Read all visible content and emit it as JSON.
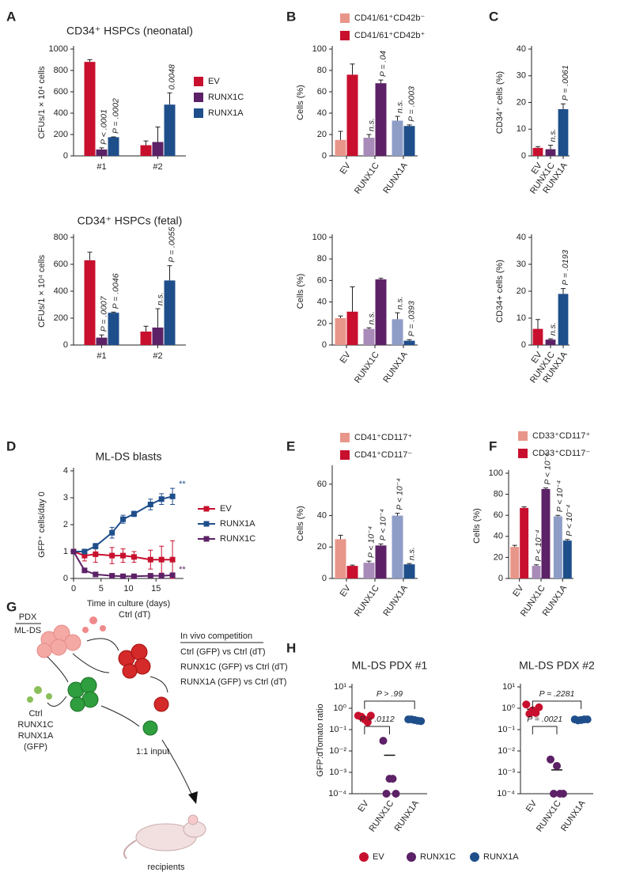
{
  "panel_labels": [
    "A",
    "B",
    "C",
    "D",
    "E",
    "F",
    "G",
    "H"
  ],
  "chart_data": [
    {
      "type": "bar",
      "title": "CD34⁺ HSPCs (neonatal)",
      "ylabel": "CFUs/1 × 10⁴ cells",
      "categories": [
        "#1",
        "#2"
      ],
      "series": [
        {
          "name": "EV",
          "color": "#c8102e",
          "values": [
            880,
            100
          ],
          "errors": [
            20,
            40
          ],
          "annotations": [
            null,
            null
          ]
        },
        {
          "name": "RUNX1C",
          "color": "#5c2166",
          "values": [
            60,
            130
          ],
          "errors": [
            15,
            140
          ],
          "annotations": [
            "P < .0001",
            null
          ]
        },
        {
          "name": "RUNX1A",
          "color": "#1f4f8b",
          "values": [
            175,
            480
          ],
          "errors": [
            3,
            110
          ],
          "annotations": [
            "P = .0002",
            "0.0048"
          ]
        }
      ],
      "ylim": [
        0,
        1000
      ],
      "yticks": [
        0,
        200,
        400,
        600,
        800,
        1000
      ],
      "legend": "right"
    },
    {
      "type": "bar",
      "title": "CD34⁺ HSPCs (fetal)",
      "ylabel": "CFUs/1 × 10⁴ cells",
      "categories": [
        "#1",
        "#2"
      ],
      "series": [
        {
          "color": "#c8102e",
          "values": [
            630,
            100
          ],
          "errors": [
            60,
            40
          ],
          "annotations": [
            null,
            null
          ]
        },
        {
          "color": "#5c2166",
          "values": [
            55,
            130
          ],
          "errors": [
            20,
            140
          ],
          "annotations": [
            "P = .0007",
            "n.s."
          ]
        },
        {
          "color": "#1f4f8b",
          "values": [
            240,
            480
          ],
          "errors": [
            5,
            110
          ],
          "annotations": [
            "P = .0046",
            "P = .0055"
          ]
        }
      ],
      "ylim": [
        0,
        800
      ],
      "yticks": [
        0,
        200,
        400,
        600,
        800
      ]
    },
    {
      "type": "bar",
      "ylabel": "Cells (%)",
      "categories": [
        "EV",
        "RUNX1C",
        "RUNX1A"
      ],
      "series": [
        {
          "name": "CD41/61⁺CD42b⁻",
          "colors": [
            "#e8968a",
            "#a88bb8",
            "#8e9dc6"
          ],
          "values": [
            15,
            17,
            33
          ],
          "errors": [
            8,
            3,
            4
          ],
          "annotations": [
            null,
            "n.s.",
            "n.s."
          ]
        },
        {
          "name": "CD41/61⁺CD42b⁺",
          "colors": [
            "#c8102e",
            "#5c2166",
            "#1f4f8b"
          ],
          "values": [
            76,
            68,
            28
          ],
          "errors": [
            10,
            3,
            1
          ],
          "annotations": [
            null,
            "P = .04",
            "P = .0003"
          ]
        }
      ],
      "ylim": [
        0,
        100
      ],
      "yticks": [
        0,
        20,
        40,
        60,
        80,
        100
      ],
      "legend": "top"
    },
    {
      "type": "bar",
      "ylabel": "Cells (%)",
      "categories": [
        "EV",
        "RUNX1C",
        "RUNX1A"
      ],
      "series": [
        {
          "colors": [
            "#e8968a",
            "#a88bb8",
            "#8e9dc6"
          ],
          "values": [
            25,
            15,
            24
          ],
          "errors": [
            2,
            1,
            6
          ],
          "annotations": [
            null,
            "n.s.",
            "n.s."
          ]
        },
        {
          "colors": [
            "#c8102e",
            "#5c2166",
            "#1f4f8b"
          ],
          "values": [
            31,
            61,
            4
          ],
          "errors": [
            23,
            1,
            1
          ],
          "annotations": [
            null,
            null,
            "P = .0393"
          ]
        }
      ],
      "ylim": [
        0,
        100
      ],
      "yticks": [
        0,
        20,
        40,
        60,
        80,
        100
      ]
    },
    {
      "type": "bar",
      "ylabel": "CD34⁺ cells (%)",
      "categories": [
        "EV",
        "RUNX1C",
        "RUNX1A"
      ],
      "series": [
        {
          "colors": [
            "#c8102e",
            "#5c2166",
            "#1f4f8b"
          ],
          "values": [
            3,
            2.5,
            17.5
          ],
          "errors": [
            0.5,
            1.5,
            2
          ],
          "annotations": [
            null,
            "n.s.",
            "P = .0061"
          ]
        }
      ],
      "ylim": [
        0,
        40
      ],
      "yticks": [
        0,
        10,
        20,
        30,
        40
      ]
    },
    {
      "type": "bar",
      "ylabel": "CD34+ cells (%)",
      "categories": [
        "EV",
        "RUNX1C",
        "RUNX1A"
      ],
      "series": [
        {
          "colors": [
            "#c8102e",
            "#5c2166",
            "#1f4f8b"
          ],
          "values": [
            6,
            2,
            19
          ],
          "errors": [
            3.5,
            0.3,
            2
          ],
          "annotations": [
            null,
            "n.s.",
            "P = .0193"
          ]
        }
      ],
      "ylim": [
        0,
        40
      ],
      "yticks": [
        0,
        10,
        20,
        30,
        40
      ]
    },
    {
      "type": "line",
      "title": "ML-DS blasts",
      "xlabel": "Time in culture (days)",
      "ylabel": "GFP⁺ cells/day 0",
      "x": [
        0,
        2,
        4,
        7,
        9,
        11,
        14,
        16,
        18
      ],
      "xlim": [
        0,
        20
      ],
      "xticks": [
        0,
        5,
        10,
        15
      ],
      "ylim": [
        0,
        4
      ],
      "yticks": [
        0,
        1,
        2,
        3,
        4
      ],
      "series": [
        {
          "name": "EV",
          "color": "#c8102e",
          "values": [
            1,
            0.85,
            0.9,
            0.85,
            0.85,
            0.8,
            0.7,
            0.7,
            0.7
          ],
          "errors": [
            0.05,
            0.2,
            0.3,
            0.3,
            0.25,
            0.2,
            0.35,
            0.5,
            0.7
          ]
        },
        {
          "name": "RUNX1A",
          "color": "#1f4f8b",
          "values": [
            1,
            1,
            1.2,
            1.7,
            2.2,
            2.4,
            2.75,
            2.95,
            3.05
          ],
          "errors": [
            0.05,
            0.08,
            0.1,
            0.2,
            0.15,
            0.1,
            0.2,
            0.2,
            0.3
          ],
          "annotation": "**"
        },
        {
          "name": "RUNX1C",
          "color": "#5c2166",
          "values": [
            1,
            0.3,
            0.15,
            0.1,
            0.08,
            0.08,
            0.1,
            0.1,
            0.12
          ],
          "errors": [
            0.05,
            0.05,
            0.05,
            0.03,
            0.03,
            0.03,
            0.05,
            0.05,
            0.05
          ],
          "annotation": "**"
        }
      ],
      "legend": "right"
    },
    {
      "type": "bar",
      "ylabel": "Cells (%)",
      "categories": [
        "EV",
        "RUNX1C",
        "RUNX1A"
      ],
      "series": [
        {
          "name": "CD41⁺CD117⁺",
          "colors": [
            "#e8968a",
            "#a88bb8",
            "#8e9dc6"
          ],
          "values": [
            25,
            10,
            40
          ],
          "errors": [
            2.5,
            1,
            1.5
          ],
          "annotations": [
            null,
            "P < 10⁻⁴",
            "P < 10⁻⁴"
          ]
        },
        {
          "name": "CD41⁺CD117⁻",
          "colors": [
            "#c8102e",
            "#5c2166",
            "#1f4f8b"
          ],
          "values": [
            8,
            21,
            9
          ],
          "errors": [
            0.5,
            1,
            0.5
          ],
          "annotations": [
            null,
            "P < 10⁻⁴",
            "n.s."
          ]
        }
      ],
      "ylim": [
        0,
        70
      ],
      "yticks": [
        0,
        20,
        40,
        60
      ],
      "legend": "top"
    },
    {
      "type": "bar",
      "ylabel": "Cells (%)",
      "categories": [
        "EV",
        "RUNX1C",
        "RUNX1A"
      ],
      "series": [
        {
          "name": "CD33⁺CD117⁺",
          "colors": [
            "#e8968a",
            "#a88bb8",
            "#8e9dc6"
          ],
          "values": [
            30,
            12,
            59
          ],
          "errors": [
            1.5,
            1,
            1
          ],
          "annotations": [
            null,
            "P < 10⁻⁴",
            "P < 10⁻⁴"
          ]
        },
        {
          "name": "CD33⁺CD117⁻",
          "colors": [
            "#c8102e",
            "#5c2166",
            "#1f4f8b"
          ],
          "values": [
            67,
            85,
            36
          ],
          "errors": [
            1,
            1,
            1
          ],
          "annotations": [
            null,
            "P < 10⁻⁴",
            "P < 10⁻⁴"
          ]
        }
      ],
      "ylim": [
        0,
        100
      ],
      "yticks": [
        0,
        20,
        40,
        60,
        80,
        100
      ],
      "legend": "top"
    },
    {
      "type": "dot",
      "title": "ML-DS PDX #1",
      "ylabel": "GFP:dTomato ratio",
      "log": true,
      "ylim": [
        0.0001,
        10
      ],
      "yticks": [
        {
          "value": 10,
          "label": "10¹"
        },
        {
          "value": 1,
          "label": "10⁰"
        },
        {
          "value": 0.1,
          "label": "10⁻¹"
        },
        {
          "value": 0.01,
          "label": "10⁻²"
        },
        {
          "value": 0.001,
          "label": "10⁻³"
        },
        {
          "value": 0.0001,
          "label": "10⁻⁴"
        }
      ],
      "groups": [
        {
          "name": "EV",
          "color": "#c8102e",
          "values": [
            0.45,
            0.3,
            0.45,
            0.4,
            0.22
          ],
          "mean": 0.36
        },
        {
          "name": "RUNX1C",
          "color": "#5c2166",
          "values": [
            0.03,
            0.0005,
            0.0001,
            0.0001,
            0.0005
          ],
          "mean": 0.0063
        },
        {
          "name": "RUNX1A",
          "color": "#1f4f8b",
          "values": [
            0.3,
            0.28,
            0.25,
            0.3,
            0.26
          ],
          "mean": 0.28
        }
      ],
      "brackets": [
        "P = .0112",
        "P > .99"
      ]
    },
    {
      "type": "dot",
      "title": "ML-DS PDX #2",
      "log": true,
      "ylim": [
        0.0001,
        10
      ],
      "yticks": [
        {
          "value": 10,
          "label": "10¹"
        },
        {
          "value": 1,
          "label": "10⁰"
        },
        {
          "value": 0.1,
          "label": "10⁻¹"
        },
        {
          "value": 0.01,
          "label": "10⁻²"
        },
        {
          "value": 0.001,
          "label": "10⁻³"
        },
        {
          "value": 0.0001,
          "label": "10⁻⁴"
        }
      ],
      "groups": [
        {
          "name": "EV",
          "color": "#c8102e",
          "values": [
            1.5,
            0.8,
            1.1,
            0.55,
            0.6
          ],
          "mean": 0.9
        },
        {
          "name": "RUNX1C",
          "color": "#5c2166",
          "values": [
            0.004,
            0.002,
            0.0001,
            0.0001,
            0.0001
          ],
          "mean": 0.0013
        },
        {
          "name": "RUNX1A",
          "color": "#1f4f8b",
          "values": [
            0.3,
            0.28,
            0.3,
            0.27,
            0.3
          ],
          "mean": 0.29
        }
      ],
      "brackets": [
        "P = .0021",
        "P = .2281"
      ]
    }
  ],
  "legend_H": [
    {
      "name": "EV",
      "color": "#c8102e"
    },
    {
      "name": "RUNX1C",
      "color": "#5c2166"
    },
    {
      "name": "RUNX1A",
      "color": "#1f4f8b"
    }
  ],
  "schematic": {
    "labels": [
      "PDX",
      "ML-DS",
      "Ctrl (dT)",
      "In vivo competition",
      "Ctrl (GFP) vs Ctrl (dT)",
      "RUNX1C (GFP) vs Ctrl (dT)",
      "RUNX1A (GFP) vs Ctrl (dT)",
      "Ctrl",
      "RUNX1C",
      "RUNX1A",
      "(GFP)",
      "1:1 input",
      "recipients"
    ]
  }
}
